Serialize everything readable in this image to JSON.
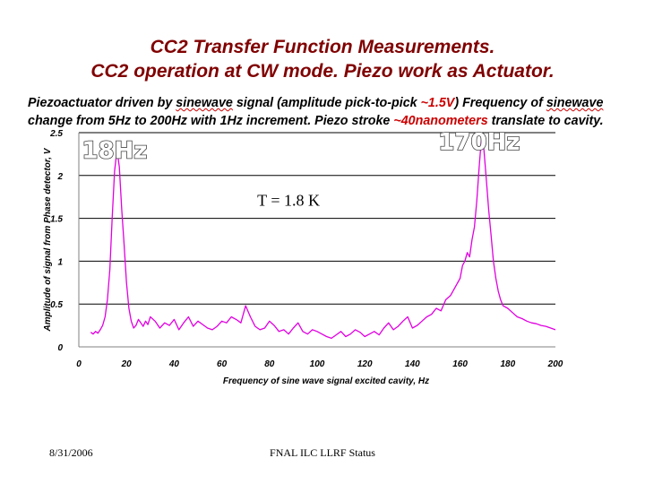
{
  "slide": {
    "title_line1": "CC2 Transfer Function Measurements.",
    "title_line2": "CC2 operation at CW mode. Piezo work as Actuator.",
    "desc": {
      "l1_a": "Piezoactuator driven by ",
      "l1_b": "sinewave",
      "l1_c": " signal (amplitude pick-to-pick ",
      "l1_d": "~1.5V",
      "l1_e": ") Frequency of ",
      "l1_f": "sinewave",
      "l2_a": "change from 5Hz to 200Hz with 1Hz increment. Piezo stroke ",
      "l2_b": "~40nanometers",
      "l2_c": " translate to cavity."
    },
    "footer_date": "8/31/2006",
    "footer_status": "FNAL ILC LLRF Status"
  },
  "chart_data": {
    "type": "line",
    "title": "",
    "xlabel": "Frequency of sine wave signal excited cavity, Hz",
    "ylabel": "Amplitude of signal from Phase detector, V",
    "xlim": [
      0,
      200
    ],
    "ylim": [
      0,
      2.5
    ],
    "x_ticks": [
      0,
      20,
      40,
      60,
      80,
      100,
      120,
      140,
      160,
      180,
      200
    ],
    "y_ticks": [
      0,
      0.5,
      1,
      1.5,
      2,
      2.5
    ],
    "y_tick_labels": [
      "0",
      "0.5",
      "1",
      "1.5",
      "2",
      "2.5"
    ],
    "gridlines_y": [
      0.5,
      1,
      1.5,
      2,
      2.5
    ],
    "series_color": "#e000e0",
    "annotations": [
      {
        "text": "18Hz",
        "x": 15,
        "y": 2.2
      },
      {
        "text": "170Hz",
        "x": 168,
        "y": 2.3
      },
      {
        "text": "T = 1.8 K",
        "x": 88,
        "y": 1.65
      }
    ],
    "series": [
      {
        "name": "Amplitude",
        "x": [
          5,
          6,
          7,
          8,
          9,
          10,
          11,
          12,
          13,
          14,
          15,
          16,
          17,
          18,
          19,
          20,
          21,
          22,
          23,
          24,
          25,
          26,
          27,
          28,
          29,
          30,
          32,
          34,
          36,
          38,
          40,
          42,
          44,
          46,
          48,
          50,
          52,
          54,
          56,
          58,
          60,
          62,
          64,
          66,
          68,
          70,
          72,
          74,
          76,
          78,
          80,
          82,
          84,
          86,
          88,
          90,
          92,
          94,
          96,
          98,
          100,
          102,
          104,
          106,
          108,
          110,
          112,
          114,
          116,
          118,
          120,
          122,
          124,
          126,
          128,
          130,
          132,
          134,
          136,
          138,
          140,
          142,
          144,
          146,
          148,
          150,
          152,
          154,
          156,
          158,
          160,
          161,
          162,
          163,
          164,
          165,
          166,
          167,
          168,
          169,
          170,
          171,
          172,
          173,
          174,
          175,
          176,
          177,
          178,
          180,
          182,
          184,
          186,
          188,
          190,
          192,
          194,
          196,
          198,
          200
        ],
        "y": [
          0.17,
          0.15,
          0.18,
          0.16,
          0.2,
          0.25,
          0.35,
          0.55,
          0.9,
          1.5,
          2.05,
          2.3,
          2.1,
          1.6,
          1.2,
          0.75,
          0.45,
          0.3,
          0.22,
          0.25,
          0.32,
          0.28,
          0.24,
          0.3,
          0.26,
          0.35,
          0.3,
          0.22,
          0.28,
          0.25,
          0.32,
          0.2,
          0.28,
          0.35,
          0.24,
          0.3,
          0.26,
          0.22,
          0.2,
          0.24,
          0.3,
          0.28,
          0.35,
          0.32,
          0.28,
          0.48,
          0.35,
          0.24,
          0.2,
          0.22,
          0.3,
          0.25,
          0.18,
          0.2,
          0.15,
          0.22,
          0.28,
          0.18,
          0.15,
          0.2,
          0.18,
          0.15,
          0.12,
          0.1,
          0.14,
          0.18,
          0.12,
          0.15,
          0.2,
          0.17,
          0.12,
          0.15,
          0.18,
          0.14,
          0.22,
          0.28,
          0.2,
          0.24,
          0.3,
          0.35,
          0.22,
          0.25,
          0.3,
          0.35,
          0.38,
          0.45,
          0.42,
          0.55,
          0.6,
          0.7,
          0.8,
          0.95,
          1.0,
          1.1,
          1.05,
          1.25,
          1.4,
          1.7,
          2.1,
          2.45,
          2.3,
          1.95,
          1.6,
          1.3,
          1.0,
          0.8,
          0.65,
          0.55,
          0.48,
          0.45,
          0.4,
          0.35,
          0.33,
          0.3,
          0.28,
          0.27,
          0.25,
          0.24,
          0.22,
          0.2
        ]
      }
    ]
  }
}
